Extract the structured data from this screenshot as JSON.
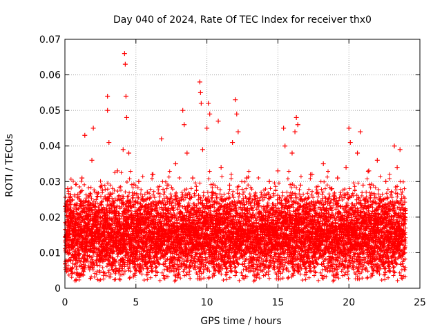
{
  "chart_data": {
    "type": "scatter",
    "title": "Day 040 of 2024, Rate Of TEC Index for receiver thx0",
    "xlabel": "GPS time / hours",
    "ylabel": "ROTI / TECUs",
    "xlim": [
      0,
      25
    ],
    "ylim": [
      0,
      0.07
    ],
    "xticks": [
      0,
      5,
      10,
      15,
      20,
      25
    ],
    "xtick_labels": [
      "0",
      "5",
      "10",
      "15",
      "20",
      "25"
    ],
    "yticks": [
      0,
      0.01,
      0.02,
      0.03,
      0.04,
      0.05,
      0.06,
      0.07
    ],
    "ytick_labels": [
      "0",
      "0.01",
      "0.02",
      "0.03",
      "0.04",
      "0.05",
      "0.06",
      "0.07"
    ],
    "grid": true,
    "marker": "+",
    "color": "#ff0000",
    "series": [
      {
        "name": "ROTI",
        "points": [
          [
            0.1,
            0.012
          ],
          [
            0.2,
            0.028
          ],
          [
            0.4,
            0.018
          ],
          [
            0.6,
            0.009
          ],
          [
            0.8,
            0.022
          ],
          [
            1.0,
            0.015
          ],
          [
            1.2,
            0.031
          ],
          [
            1.4,
            0.043
          ],
          [
            1.5,
            0.011
          ],
          [
            1.7,
            0.026
          ],
          [
            1.9,
            0.036
          ],
          [
            2.0,
            0.045
          ],
          [
            2.2,
            0.019
          ],
          [
            2.4,
            0.008
          ],
          [
            2.6,
            0.029
          ],
          [
            2.8,
            0.016
          ],
          [
            3.0,
            0.054
          ],
          [
            3.0,
            0.05
          ],
          [
            3.1,
            0.041
          ],
          [
            3.3,
            0.022
          ],
          [
            3.5,
            0.013
          ],
          [
            3.7,
            0.033
          ],
          [
            3.9,
            0.017
          ],
          [
            4.1,
            0.039
          ],
          [
            4.2,
            0.066
          ],
          [
            4.25,
            0.063
          ],
          [
            4.3,
            0.054
          ],
          [
            4.35,
            0.048
          ],
          [
            4.5,
            0.038
          ],
          [
            4.6,
            0.024
          ],
          [
            4.8,
            0.012
          ],
          [
            5.0,
            0.021
          ],
          [
            5.2,
            0.03
          ],
          [
            5.4,
            0.009
          ],
          [
            5.6,
            0.018
          ],
          [
            5.8,
            0.027
          ],
          [
            6.0,
            0.014
          ],
          [
            6.2,
            0.032
          ],
          [
            6.4,
            0.011
          ],
          [
            6.6,
            0.024
          ],
          [
            6.8,
            0.042
          ],
          [
            7.0,
            0.016
          ],
          [
            7.2,
            0.029
          ],
          [
            7.4,
            0.008
          ],
          [
            7.6,
            0.02
          ],
          [
            7.8,
            0.035
          ],
          [
            8.0,
            0.013
          ],
          [
            8.2,
            0.025
          ],
          [
            8.3,
            0.05
          ],
          [
            8.4,
            0.046
          ],
          [
            8.6,
            0.038
          ],
          [
            8.8,
            0.019
          ],
          [
            9.0,
            0.031
          ],
          [
            9.2,
            0.012
          ],
          [
            9.4,
            0.022
          ],
          [
            9.5,
            0.058
          ],
          [
            9.55,
            0.055
          ],
          [
            9.6,
            0.052
          ],
          [
            9.7,
            0.039
          ],
          [
            9.9,
            0.018
          ],
          [
            10.0,
            0.045
          ],
          [
            10.1,
            0.052
          ],
          [
            10.2,
            0.049
          ],
          [
            10.4,
            0.027
          ],
          [
            10.6,
            0.015
          ],
          [
            10.8,
            0.047
          ],
          [
            11.0,
            0.034
          ],
          [
            11.2,
            0.021
          ],
          [
            11.4,
            0.01
          ],
          [
            11.6,
            0.029
          ],
          [
            11.8,
            0.041
          ],
          [
            12.0,
            0.053
          ],
          [
            12.1,
            0.049
          ],
          [
            12.2,
            0.044
          ],
          [
            12.4,
            0.024
          ],
          [
            12.6,
            0.013
          ],
          [
            12.8,
            0.031
          ],
          [
            13.0,
            0.019
          ],
          [
            13.2,
            0.008
          ],
          [
            13.4,
            0.026
          ],
          [
            13.6,
            0.015
          ],
          [
            13.8,
            0.005
          ],
          [
            14.0,
            0.022
          ],
          [
            14.2,
            0.012
          ],
          [
            14.4,
            0.03
          ],
          [
            14.6,
            0.017
          ],
          [
            14.8,
            0.009
          ],
          [
            15.0,
            0.033
          ],
          [
            15.2,
            0.021
          ],
          [
            15.4,
            0.045
          ],
          [
            15.5,
            0.04
          ],
          [
            15.6,
            0.014
          ],
          [
            15.8,
            0.026
          ],
          [
            16.0,
            0.038
          ],
          [
            16.2,
            0.044
          ],
          [
            16.3,
            0.048
          ],
          [
            16.4,
            0.046
          ],
          [
            16.6,
            0.029
          ],
          [
            16.8,
            0.016
          ],
          [
            17.0,
            0.024
          ],
          [
            17.2,
            0.011
          ],
          [
            17.4,
            0.032
          ],
          [
            17.6,
            0.019
          ],
          [
            17.8,
            0.027
          ],
          [
            18.0,
            0.013
          ],
          [
            18.2,
            0.035
          ],
          [
            18.4,
            0.022
          ],
          [
            18.6,
            0.009
          ],
          [
            18.8,
            0.028
          ],
          [
            19.0,
            0.017
          ],
          [
            19.2,
            0.031
          ],
          [
            19.4,
            0.023
          ],
          [
            19.6,
            0.012
          ],
          [
            19.8,
            0.034
          ],
          [
            20.0,
            0.045
          ],
          [
            20.1,
            0.041
          ],
          [
            20.2,
            0.026
          ],
          [
            20.4,
            0.018
          ],
          [
            20.6,
            0.038
          ],
          [
            20.8,
            0.044
          ],
          [
            21.0,
            0.029
          ],
          [
            21.2,
            0.015
          ],
          [
            21.4,
            0.033
          ],
          [
            21.6,
            0.021
          ],
          [
            21.8,
            0.008
          ],
          [
            22.0,
            0.036
          ],
          [
            22.2,
            0.024
          ],
          [
            22.4,
            0.012
          ],
          [
            22.6,
            0.03
          ],
          [
            22.8,
            0.018
          ],
          [
            23.0,
            0.027
          ],
          [
            23.2,
            0.04
          ],
          [
            23.4,
            0.034
          ],
          [
            23.6,
            0.039
          ],
          [
            23.8,
            0.016
          ],
          [
            24.0,
            0.022
          ]
        ]
      }
    ]
  }
}
